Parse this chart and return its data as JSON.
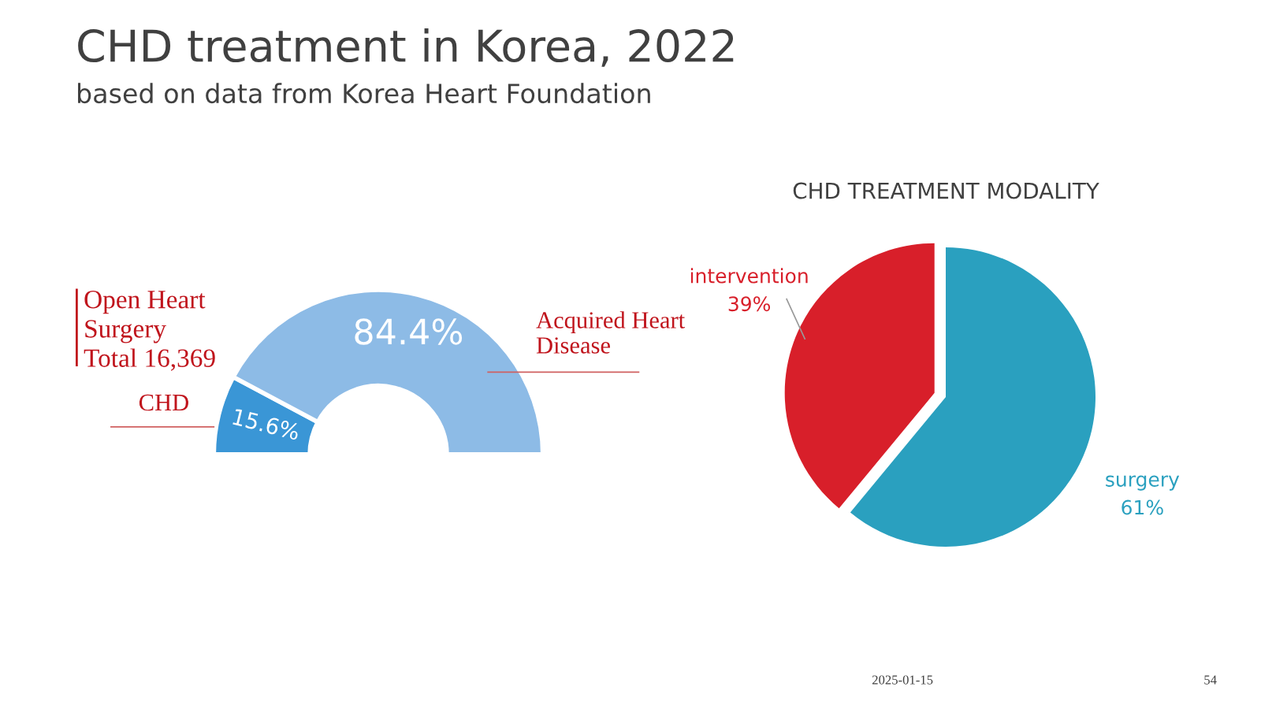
{
  "chart_data": [
    {
      "type": "donut",
      "title": "CHD treatment in Korea, 2022",
      "subtitle": "based on data from Korea Heart Foundation",
      "categories": [
        "CHD",
        "Acquired Heart Disease"
      ],
      "values": [
        15.6,
        84.4
      ],
      "value_labels": [
        "15.6%",
        "84.4%"
      ],
      "colors": [
        "#3a96d6",
        "#8dbbe6"
      ],
      "annotations": [
        "Open Heart Surgery Total 16,369"
      ]
    },
    {
      "type": "pie",
      "title": "CHD TREATMENT MODALITY",
      "categories": [
        "intervention",
        "surgery"
      ],
      "values": [
        39,
        61
      ],
      "value_labels": [
        "39%",
        "61%"
      ],
      "colors": [
        "#d81f2a",
        "#2aa0bf"
      ],
      "annotations": [
        "2025-01-15",
        "54"
      ]
    }
  ]
}
